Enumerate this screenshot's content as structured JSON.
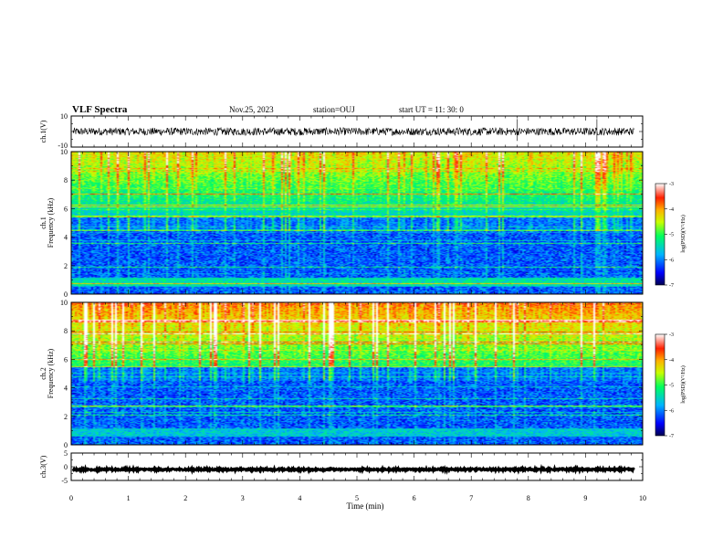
{
  "header": {
    "title": "VLF Spectra",
    "date": "Nov.25, 2023",
    "station": "station=OUJ",
    "start": "start  UT =   11: 30: 0"
  },
  "chart_data": [
    {
      "type": "line",
      "name": "ch1-waveform",
      "ylabel": "ch.1(V)",
      "ylim": [
        -10,
        10
      ],
      "yticks": [
        "10",
        "-10"
      ],
      "xlim": [
        0,
        10
      ],
      "data_end_min": 9.85,
      "mean_v": 0.0,
      "amplitude_v": 2.5,
      "spikes_min": [
        7.8,
        9.2
      ]
    },
    {
      "type": "heatmap",
      "name": "ch1-spectrogram",
      "ylabel": "ch.1\nFrequency (kHz)",
      "ylabel_line1": "ch.1",
      "ylabel_line2": "Frequency  (kHz)",
      "ylim": [
        0,
        10
      ],
      "yticks": [
        "0",
        "2",
        "4",
        "6",
        "8",
        "10"
      ],
      "xlim": [
        0,
        10
      ],
      "colorbar": {
        "label": "log(PSD)(V²/Hz)",
        "range": [
          -7,
          -3
        ],
        "ticks": [
          "-3",
          "-4",
          "-5",
          "-6",
          "-7"
        ]
      }
    },
    {
      "type": "heatmap",
      "name": "ch2-spectrogram",
      "ylabel_line1": "ch.2",
      "ylabel_line2": "Frequency  (kHz)",
      "ylim": [
        0,
        10
      ],
      "yticks": [
        "0",
        "2",
        "4",
        "6",
        "8",
        "10"
      ],
      "xlim": [
        0,
        10
      ],
      "colorbar": {
        "label": "log(PSD)(V²/Hz)",
        "range": [
          -7,
          -3
        ],
        "ticks": [
          "-3",
          "-4",
          "-5",
          "-6",
          "-7"
        ]
      }
    },
    {
      "type": "line",
      "name": "ch3-waveform",
      "ylabel": "ch.3(V)",
      "ylim": [
        -5,
        5
      ],
      "yticks": [
        "5",
        "0",
        "-5"
      ],
      "xlim": [
        0,
        10
      ],
      "data_end_min": 9.85,
      "mean_v": -1.0,
      "amplitude_v": 0.3
    }
  ],
  "xaxis": {
    "label": "Time  (min)",
    "ticks": [
      "0",
      "1",
      "2",
      "3",
      "4",
      "5",
      "6",
      "7",
      "8",
      "9",
      "10"
    ]
  },
  "colors": {
    "waveform": "#000000",
    "colormap": [
      "#000000",
      "#0000c8",
      "#0050ff",
      "#00c8ff",
      "#00ff80",
      "#a0ff00",
      "#ffff00",
      "#ff8000",
      "#ff0000",
      "#ffffff"
    ]
  }
}
